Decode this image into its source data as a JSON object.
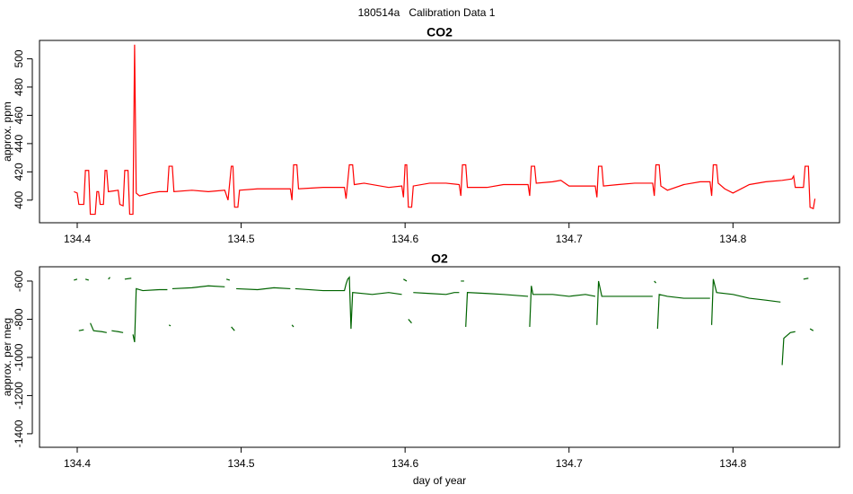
{
  "title": "180514a   Calibration Data 1",
  "chart_data": [
    {
      "type": "line",
      "title": "CO2",
      "ylabel": "approx. ppm",
      "xlim": [
        134.377,
        134.865
      ],
      "xticks": [
        134.4,
        134.5,
        134.6,
        134.7,
        134.8
      ],
      "ylim": [
        384,
        513
      ],
      "yticks": [
        400,
        420,
        440,
        460,
        480,
        500
      ],
      "x": [
        134.398,
        134.4,
        134.401,
        134.404,
        134.405,
        134.407,
        134.408,
        134.411,
        134.412,
        134.413,
        134.414,
        134.416,
        134.417,
        134.418,
        134.419,
        134.425,
        134.426,
        134.428,
        134.429,
        134.431,
        134.432,
        134.434,
        134.435,
        134.436,
        134.438,
        134.445,
        134.45,
        134.455,
        134.456,
        134.458,
        134.459,
        134.47,
        134.48,
        134.49,
        134.492,
        134.494,
        134.495,
        134.496,
        134.498,
        134.499,
        134.51,
        134.52,
        134.53,
        134.531,
        134.532,
        134.534,
        134.535,
        134.55,
        134.563,
        134.564,
        134.566,
        134.568,
        134.569,
        134.575,
        134.59,
        134.598,
        134.599,
        134.6,
        134.601,
        134.602,
        134.604,
        134.605,
        134.615,
        134.625,
        134.633,
        134.634,
        134.635,
        134.637,
        134.638,
        134.65,
        134.66,
        134.675,
        134.676,
        134.677,
        134.679,
        134.68,
        134.69,
        134.695,
        134.7,
        134.71,
        134.716,
        134.717,
        134.718,
        134.72,
        134.721,
        134.73,
        134.74,
        134.751,
        134.752,
        134.753,
        134.755,
        134.756,
        134.76,
        134.77,
        134.78,
        134.786,
        134.787,
        134.788,
        134.79,
        134.791,
        134.795,
        134.8,
        134.81,
        134.82,
        134.83,
        134.836,
        134.837,
        134.838,
        134.843,
        134.844,
        134.846,
        134.847,
        134.849,
        134.85
      ],
      "series": [
        {
          "name": "CO2",
          "color": "#ff0000",
          "values": [
            406,
            405,
            397,
            397,
            421,
            421,
            390,
            390,
            406,
            406,
            397,
            397,
            421,
            421,
            406,
            407,
            397,
            396,
            421,
            421,
            390,
            390,
            510,
            405,
            403,
            405,
            406,
            406,
            424,
            424,
            406,
            407,
            406,
            407,
            400,
            424,
            424,
            395,
            395,
            407,
            408,
            408,
            408,
            400,
            425,
            425,
            408,
            409,
            409,
            401,
            425,
            425,
            411,
            412,
            409,
            410,
            402,
            425,
            425,
            395,
            395,
            410,
            412,
            412,
            411,
            403,
            425,
            425,
            409,
            409,
            411,
            411,
            403,
            424,
            424,
            412,
            413,
            414,
            410,
            410,
            410,
            402,
            424,
            424,
            410,
            411,
            412,
            412,
            403,
            425,
            425,
            410,
            407,
            411,
            413,
            413,
            403,
            425,
            425,
            412,
            408,
            405,
            411,
            413,
            414,
            415,
            417,
            409,
            409,
            424,
            424,
            395,
            394,
            401
          ]
        }
      ]
    },
    {
      "type": "line",
      "title": "O2",
      "ylabel": "approx. per meg",
      "xlabel": "day of year",
      "xlim": [
        134.377,
        134.865
      ],
      "xticks": [
        134.4,
        134.5,
        134.6,
        134.7,
        134.8
      ],
      "ylim": [
        -1471,
        -525
      ],
      "yticks": [
        -600,
        -800,
        -1000,
        -1200,
        -1400
      ],
      "x": [
        134.398,
        134.4,
        134.4005,
        134.401,
        134.404,
        134.4045,
        134.405,
        134.407,
        134.4075,
        134.408,
        134.41,
        134.415,
        134.418,
        134.4185,
        134.419,
        134.42,
        134.4205,
        134.421,
        134.425,
        134.428,
        134.4285,
        134.429,
        134.433,
        134.4335,
        134.434,
        134.435,
        134.436,
        134.44,
        134.45,
        134.455,
        134.4555,
        134.456,
        134.457,
        134.4575,
        134.458,
        134.47,
        134.48,
        134.49,
        134.4905,
        134.491,
        134.493,
        134.4935,
        134.494,
        134.496,
        134.4965,
        134.497,
        134.51,
        134.52,
        134.53,
        134.5305,
        134.531,
        134.532,
        134.5325,
        134.533,
        134.55,
        134.563,
        134.564,
        134.565,
        134.566,
        134.567,
        134.568,
        134.58,
        134.59,
        134.598,
        134.5985,
        134.599,
        134.601,
        134.6015,
        134.602,
        134.604,
        134.6045,
        134.605,
        134.615,
        134.625,
        134.63,
        134.633,
        134.6335,
        134.634,
        134.636,
        134.6365,
        134.637,
        134.638,
        134.65,
        134.66,
        134.675,
        134.6755,
        134.676,
        134.677,
        134.678,
        134.69,
        134.7,
        134.71,
        134.716,
        134.7165,
        134.717,
        134.718,
        134.72,
        134.73,
        134.74,
        134.751,
        134.7515,
        134.752,
        134.753,
        134.7535,
        134.754,
        134.755,
        134.76,
        134.77,
        134.786,
        134.7865,
        134.787,
        134.788,
        134.79,
        134.8,
        134.81,
        134.82,
        134.829,
        134.8295,
        134.83,
        134.831,
        134.835,
        134.838,
        134.8385,
        134.843,
        134.846,
        134.8465,
        134.847,
        134.849
      ],
      "series": [
        {
          "name": "O2",
          "color": "#006400",
          "values": [
            -595,
            -590,
            null,
            -860,
            -855,
            null,
            -590,
            -595,
            null,
            -820,
            -860,
            -865,
            -870,
            null,
            -590,
            -580,
            null,
            -860,
            -865,
            -870,
            null,
            -590,
            -585,
            null,
            -880,
            -920,
            -640,
            -650,
            -645,
            -645,
            null,
            -830,
            -835,
            null,
            -640,
            -635,
            -625,
            -630,
            null,
            -590,
            -595,
            null,
            -840,
            -860,
            null,
            -640,
            -645,
            -635,
            -640,
            null,
            -830,
            -840,
            null,
            -640,
            -650,
            -650,
            -615,
            -590,
            -580,
            -850,
            -660,
            -670,
            -660,
            -670,
            null,
            -590,
            -600,
            null,
            -800,
            -820,
            null,
            -660,
            -665,
            -670,
            -660,
            -660,
            null,
            -600,
            -600,
            null,
            -840,
            -660,
            -665,
            -670,
            -680,
            null,
            -840,
            -625,
            -670,
            -670,
            -680,
            -670,
            -680,
            null,
            -830,
            -600,
            -680,
            -680,
            -680,
            -680,
            null,
            -600,
            -610,
            null,
            -850,
            -670,
            -680,
            -690,
            -690,
            null,
            -830,
            -590,
            -660,
            -670,
            -690,
            -700,
            -710,
            null,
            -1040,
            -900,
            -870,
            -865,
            null,
            -590,
            -585,
            null,
            -850,
            -860
          ]
        }
      ]
    }
  ]
}
